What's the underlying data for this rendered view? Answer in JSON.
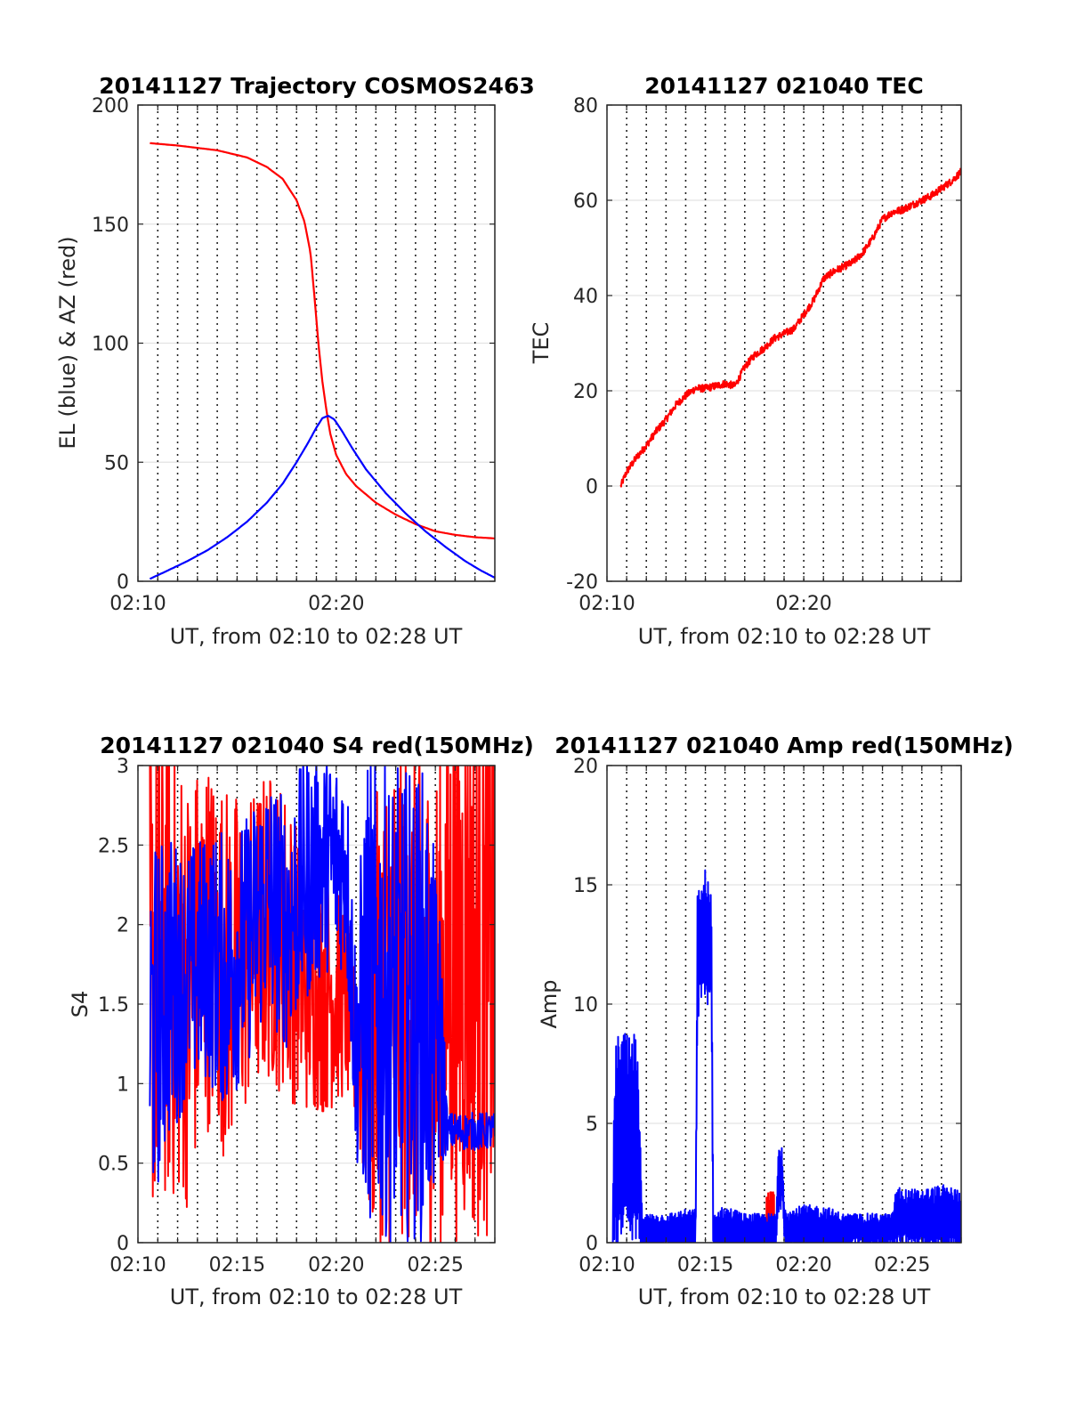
{
  "chart_data": [
    {
      "type": "line",
      "title": "20141127 Trajectory COSMOS2463",
      "xlabel": "UT, from 02:10 to 02:28 UT",
      "ylabel": "EL (blue) & AZ (red)",
      "xlim": [
        0,
        18
      ],
      "ylim": [
        0,
        200
      ],
      "xticks": [
        {
          "v": 0,
          "label": "02:10"
        },
        {
          "v": 10,
          "label": "02:20"
        }
      ],
      "yticks": [
        {
          "v": 0,
          "label": "0"
        },
        {
          "v": 50,
          "label": "50"
        },
        {
          "v": 100,
          "label": "100"
        },
        {
          "v": 150,
          "label": "150"
        },
        {
          "v": 200,
          "label": "200"
        }
      ],
      "grid": true,
      "series": [
        {
          "color": "#ff0000",
          "style": "smooth",
          "x": [
            0.6,
            2,
            4,
            5.5,
            6.5,
            7.3,
            8,
            8.4,
            8.7,
            8.9,
            9.1,
            9.3,
            9.5,
            9.7,
            10,
            10.5,
            11,
            12,
            13,
            14,
            15,
            16,
            17,
            18
          ],
          "y": [
            184,
            183,
            181,
            178,
            174,
            169,
            160,
            151,
            138,
            120,
            100,
            84,
            72,
            62,
            53,
            45,
            40,
            33,
            28,
            24,
            21,
            19.5,
            18.5,
            18
          ]
        },
        {
          "color": "#0000ff",
          "style": "smooth",
          "x": [
            0.6,
            1.5,
            2.5,
            3.5,
            4.5,
            5.5,
            6.5,
            7.3,
            8,
            8.5,
            9,
            9.3,
            9.6,
            9.9,
            10.3,
            10.8,
            11.5,
            12.5,
            13.5,
            14.5,
            15.5,
            16.5,
            17.3,
            18
          ],
          "y": [
            1,
            4.5,
            8.5,
            13,
            18.5,
            25,
            33,
            41,
            50,
            57,
            64.5,
            68.5,
            69.5,
            68,
            63,
            56,
            47,
            37,
            28.5,
            21,
            14.5,
            8.5,
            4.5,
            1.5
          ]
        }
      ]
    },
    {
      "type": "line",
      "title": "20141127 021040 TEC",
      "xlabel": "UT, from 02:10 to 02:28 UT",
      "ylabel": "TEC",
      "xlim": [
        0,
        18
      ],
      "ylim": [
        -20,
        80
      ],
      "xticks": [
        {
          "v": 0,
          "label": "02:10"
        },
        {
          "v": 10,
          "label": "02:20"
        }
      ],
      "yticks": [
        {
          "v": -20,
          "label": "-20"
        },
        {
          "v": 0,
          "label": "0"
        },
        {
          "v": 20,
          "label": "20"
        },
        {
          "v": 40,
          "label": "40"
        },
        {
          "v": 60,
          "label": "60"
        },
        {
          "v": 80,
          "label": "80"
        }
      ],
      "grid": true,
      "series": [
        {
          "color": "#ff0000",
          "noise": 0.8,
          "npts": 900,
          "x": [
            0.7,
            1,
            1.5,
            2,
            2.5,
            3,
            3.5,
            4,
            4.5,
            5,
            5.5,
            6,
            6.5,
            7,
            7.5,
            8,
            8.5,
            9,
            9.5,
            10,
            10.5,
            11,
            11.5,
            12,
            12.5,
            13,
            13.5,
            14,
            14.5,
            15,
            15.5,
            16,
            16.5,
            17,
            17.5,
            18
          ],
          "y": [
            0,
            3,
            6,
            8.5,
            11.5,
            14,
            17,
            19,
            20.5,
            20.5,
            21,
            21.5,
            21,
            25,
            27.5,
            29,
            31,
            32,
            33,
            36,
            39,
            43.5,
            45,
            46,
            47,
            49,
            52,
            56,
            57.5,
            58,
            59,
            60,
            61,
            62.5,
            64,
            66
          ]
        }
      ]
    },
    {
      "type": "line",
      "title": "20141127 021040 S4 red(150MHz)",
      "xlabel": "UT, from 02:10 to 02:28 UT",
      "ylabel": "S4",
      "xlim": [
        0,
        18
      ],
      "ylim": [
        0,
        3
      ],
      "xticks": [
        {
          "v": 0,
          "label": "02:10"
        },
        {
          "v": 5,
          "label": "02:15"
        },
        {
          "v": 10,
          "label": "02:20"
        },
        {
          "v": 15,
          "label": "02:25"
        }
      ],
      "yticks": [
        {
          "v": 0,
          "label": "0"
        },
        {
          "v": 0.5,
          "label": "0.5"
        },
        {
          "v": 1,
          "label": "1"
        },
        {
          "v": 1.5,
          "label": "1.5"
        },
        {
          "v": 2,
          "label": "2"
        },
        {
          "v": 2.5,
          "label": "2.5"
        },
        {
          "v": 3,
          "label": "3"
        }
      ],
      "grid": true,
      "series": [
        {
          "color": "#ff0000",
          "spike": true,
          "npts": 700,
          "x": [
            0.6,
            1.5,
            2.5,
            3.5,
            4.5,
            5.5,
            6.5,
            7.5,
            8.5,
            9.5,
            10.5,
            11,
            11.5,
            12.5,
            13.5,
            14.5,
            15.3,
            15.6,
            16.5,
            17.5,
            18
          ],
          "y": [
            1.7,
            1.8,
            1.6,
            1.9,
            1.7,
            1.8,
            2.0,
            1.9,
            1.6,
            1.6,
            1.5,
            1.2,
            1.3,
            1.5,
            1.6,
            1.5,
            1.5,
            1.8,
            1.8,
            1.8,
            1.8
          ],
          "amp": [
            1.6,
            1.6,
            1.4,
            1.2,
            1.2,
            1.0,
            1.0,
            1.0,
            0.8,
            0.8,
            0.6,
            0.5,
            1.2,
            1.6,
            1.6,
            1.6,
            1.6,
            1.8,
            1.8,
            1.8,
            1.8
          ]
        },
        {
          "color": "#0000ff",
          "spike": true,
          "npts": 700,
          "x": [
            0.6,
            1.5,
            2.5,
            3.5,
            4.5,
            5.5,
            6.5,
            7.5,
            8.5,
            9.5,
            10.5,
            11,
            11.5,
            12.5,
            13.5,
            14.5,
            15.3,
            15.6,
            16.5,
            17.5,
            18
          ],
          "y": [
            1.3,
            1.6,
            1.7,
            1.8,
            1.7,
            1.9,
            2.2,
            2.0,
            2.3,
            2.4,
            2.4,
            1.2,
            1.6,
            1.5,
            1.5,
            1.5,
            1.2,
            0.7,
            0.7,
            0.7,
            0.7
          ],
          "amp": [
            1.2,
            1.0,
            0.8,
            0.8,
            0.9,
            0.8,
            0.8,
            0.8,
            0.8,
            0.7,
            0.7,
            0.7,
            1.5,
            1.5,
            1.5,
            1.5,
            0.8,
            0.12,
            0.12,
            0.12,
            0.12
          ]
        }
      ]
    },
    {
      "type": "line",
      "title": "20141127 021040 Amp red(150MHz)",
      "xlabel": "UT, from 02:10 to 02:28 UT",
      "ylabel": "Amp",
      "xlim": [
        0,
        18
      ],
      "ylim": [
        0,
        20
      ],
      "xticks": [
        {
          "v": 0,
          "label": "02:10"
        },
        {
          "v": 5,
          "label": "02:15"
        },
        {
          "v": 10,
          "label": "02:20"
        },
        {
          "v": 15,
          "label": "02:25"
        }
      ],
      "yticks": [
        {
          "v": 0,
          "label": "0"
        },
        {
          "v": 5,
          "label": "5"
        },
        {
          "v": 10,
          "label": "10"
        },
        {
          "v": 15,
          "label": "15"
        },
        {
          "v": 20,
          "label": "20"
        }
      ],
      "grid": true,
      "series": [
        {
          "color": "#ff0000",
          "envelope": true,
          "npts": 40,
          "x": [
            8.1,
            8.3,
            8.5
          ],
          "y": [
            0.7,
            0.7,
            0.7
          ],
          "amp": [
            0.8,
            0.8,
            0.8
          ]
        },
        {
          "color": "#0000ff",
          "envelope": true,
          "npts": 1000,
          "x": [
            0.3,
            0.4,
            0.8,
            1.2,
            1.5,
            1.6,
            1.8,
            2.0,
            3.0,
            4.0,
            4.5,
            4.6,
            5.0,
            5.3,
            5.4,
            6.0,
            7.0,
            8.0,
            8.6,
            8.7,
            8.9,
            9.0,
            9.2,
            10.0,
            11.0,
            12.0,
            13.0,
            14.5,
            14.7,
            15.0,
            16.0,
            17.0,
            18.0
          ],
          "y": [
            0.5,
            4.0,
            4.5,
            4.0,
            4.5,
            3.0,
            0.5,
            0.5,
            0.5,
            0.5,
            0.5,
            12.0,
            13.0,
            12.0,
            0.5,
            0.5,
            0.5,
            0.5,
            0.5,
            2.5,
            3.0,
            1.0,
            0.5,
            0.5,
            0.5,
            0.5,
            0.5,
            0.5,
            1.0,
            1.0,
            1.0,
            1.0,
            1.0
          ],
          "amp": [
            0.5,
            2.5,
            2.5,
            2.5,
            2.5,
            2.0,
            0.5,
            0.4,
            0.4,
            0.5,
            0.5,
            1.5,
            1.5,
            1.5,
            0.4,
            0.6,
            0.4,
            0.4,
            0.4,
            0.8,
            0.8,
            0.4,
            0.5,
            0.6,
            0.6,
            0.4,
            0.4,
            0.4,
            0.8,
            0.7,
            0.7,
            0.8,
            0.7
          ]
        }
      ]
    }
  ]
}
